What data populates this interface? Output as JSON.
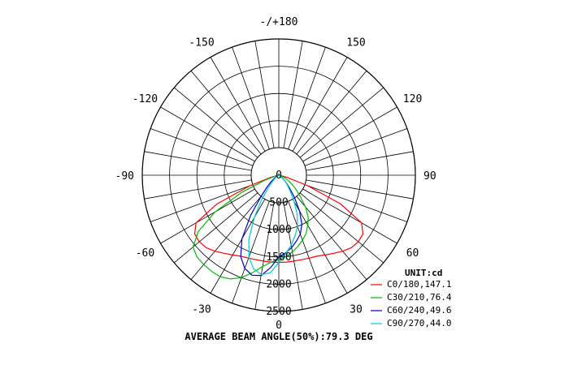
{
  "chart_data": {
    "type": "polar",
    "unit_label": "UNIT:cd",
    "footer": "AVERAGE BEAM ANGLE(50%):79.3 DEG",
    "angle_labels": [
      {
        "angle": -150,
        "text": "-150"
      },
      {
        "angle": 180,
        "text": "-/+180"
      },
      {
        "angle": 150,
        "text": "150"
      },
      {
        "angle": -120,
        "text": "-120"
      },
      {
        "angle": 120,
        "text": "120"
      },
      {
        "angle": -90,
        "text": "-90"
      },
      {
        "angle": 90,
        "text": "90"
      },
      {
        "angle": -60,
        "text": "-60"
      },
      {
        "angle": 60,
        "text": "60"
      },
      {
        "angle": -30,
        "text": "-30"
      },
      {
        "angle": 30,
        "text": "30"
      },
      {
        "angle": 0,
        "text": "0"
      }
    ],
    "radial_ticks": [
      0,
      500,
      1000,
      1500,
      2000,
      2500
    ],
    "radial_labels": [
      "0",
      "500",
      "1000",
      "1500",
      "2000",
      "2500"
    ],
    "r_max": 2500,
    "angle_step_grid": 10,
    "series": [
      {
        "name": "C0/180,147.1",
        "color": "#ff0000",
        "angles": [
          -90,
          -85,
          -80,
          -75,
          -70,
          -65,
          -60,
          -55,
          -50,
          -45,
          -40,
          -35,
          -30,
          -25,
          -20,
          -15,
          -10,
          -5,
          0,
          5,
          10,
          15,
          20,
          25,
          30,
          35,
          40,
          45,
          50,
          55,
          60,
          65,
          70,
          75,
          80,
          85,
          90
        ],
        "values": [
          0,
          10,
          45,
          155,
          560,
          1250,
          1750,
          1880,
          1900,
          1880,
          1820,
          1750,
          1690,
          1640,
          1620,
          1605,
          1600,
          1600,
          1600,
          1600,
          1600,
          1605,
          1620,
          1640,
          1690,
          1750,
          1820,
          1880,
          1900,
          1880,
          1750,
          1250,
          560,
          155,
          45,
          10,
          0
        ]
      },
      {
        "name": "C30/210,76.4",
        "color": "#00bb00",
        "angles": [
          -90,
          -85,
          -80,
          -75,
          -70,
          -65,
          -60,
          -55,
          -50,
          -45,
          -40,
          -35,
          -30,
          -25,
          -20,
          -15,
          -10,
          -5,
          0,
          5,
          10,
          15,
          20,
          25,
          30,
          35,
          40,
          45,
          50,
          55,
          60,
          65,
          70,
          75,
          80,
          85,
          90
        ],
        "values": [
          0,
          5,
          20,
          80,
          280,
          760,
          1350,
          1800,
          2050,
          2120,
          2140,
          2150,
          2150,
          2100,
          2000,
          1850,
          1700,
          1600,
          1550,
          1500,
          1430,
          1350,
          1270,
          1180,
          1060,
          940,
          760,
          560,
          420,
          300,
          210,
          130,
          70,
          30,
          10,
          3,
          0
        ]
      },
      {
        "name": "C60/240,49.6",
        "color": "#0000cc",
        "angles": [
          -90,
          -80,
          -70,
          -60,
          -55,
          -50,
          -45,
          -40,
          -35,
          -30,
          -25,
          -20,
          -15,
          -10,
          -5,
          0,
          5,
          10,
          15,
          20,
          25,
          30,
          35,
          40,
          45,
          50,
          60,
          70,
          80,
          90
        ],
        "values": [
          0,
          5,
          20,
          60,
          100,
          180,
          300,
          500,
          900,
          1350,
          1650,
          1820,
          1900,
          1870,
          1700,
          1500,
          1430,
          1350,
          1250,
          1150,
          1000,
          760,
          500,
          300,
          180,
          100,
          40,
          15,
          5,
          0
        ]
      },
      {
        "name": "C90/270,44.0",
        "color": "#00cccc",
        "angles": [
          -90,
          -80,
          -70,
          -60,
          -50,
          -45,
          -40,
          -35,
          -30,
          -25,
          -20,
          -15,
          -10,
          -5,
          0,
          5,
          10,
          15,
          20,
          25,
          30,
          35,
          40,
          45,
          50,
          60,
          70,
          80,
          90
        ],
        "values": [
          0,
          5,
          15,
          40,
          100,
          170,
          300,
          550,
          900,
          1300,
          1600,
          1780,
          1850,
          1800,
          1600,
          1450,
          1300,
          1150,
          1000,
          800,
          560,
          370,
          250,
          170,
          110,
          50,
          20,
          5,
          0
        ]
      }
    ]
  }
}
